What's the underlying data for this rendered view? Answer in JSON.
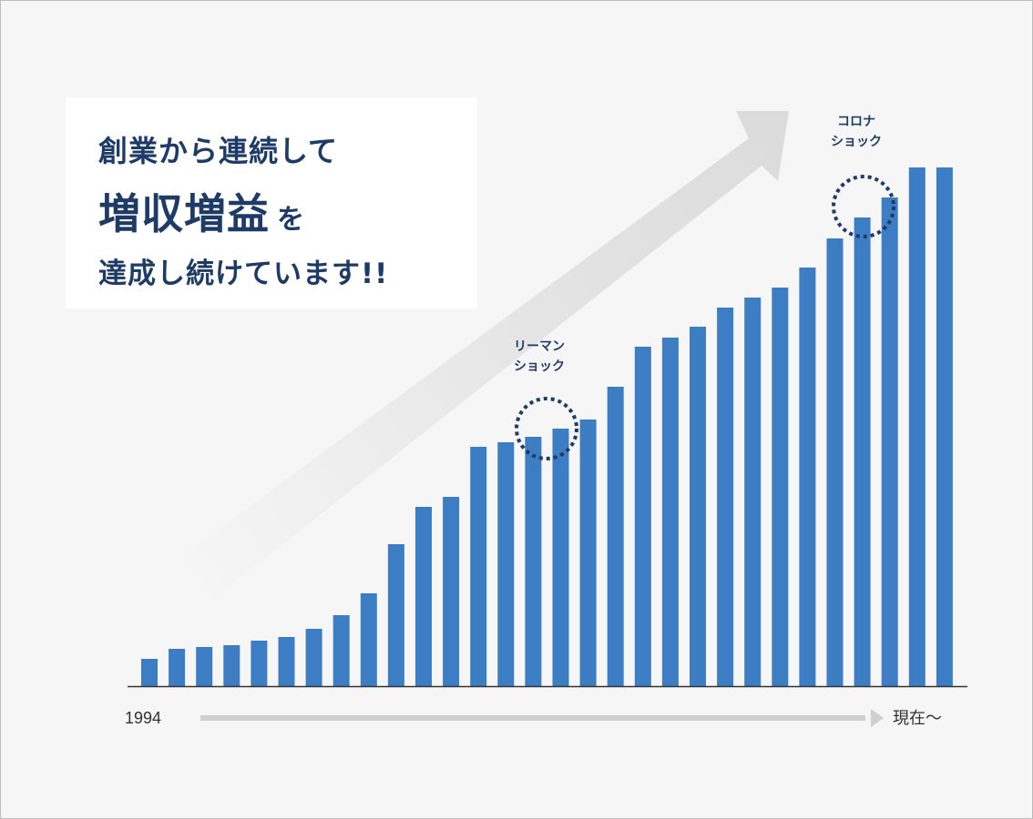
{
  "headline": {
    "line1": "創業から連続して",
    "line2_big": "増収増益",
    "line2_small": "を",
    "line3": "達成し続けています!!"
  },
  "chart_data": {
    "type": "bar",
    "values": [
      30,
      41,
      43,
      45,
      50,
      54,
      63,
      78,
      102,
      156,
      197,
      208,
      263,
      268,
      274,
      283,
      293,
      329,
      373,
      383,
      395,
      416,
      427,
      438,
      460,
      492,
      515,
      537,
      570,
      570
    ],
    "x_start_label": "1994",
    "x_end_label": "現在～",
    "grid": false,
    "legend": "none",
    "annotations": [
      {
        "text_line1": "リーマン",
        "text_line2": "ショック",
        "bar_index": 14
      },
      {
        "text_line1": "コロナ",
        "text_line2": "ショック",
        "bar_index": 26
      }
    ]
  },
  "colors": {
    "bar": "#3c7dc4",
    "text": "#1e3a66",
    "arrow": "#dcdcdc",
    "axis_arrow": "#cfcfcf",
    "baseline": "#333333",
    "background": "#f6f6f6"
  }
}
